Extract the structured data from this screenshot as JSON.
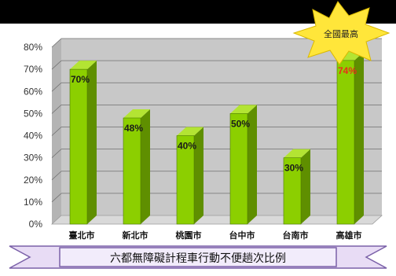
{
  "badge": {
    "text": "全國最高"
  },
  "banner": {
    "title": "六都無障礙計程車行動不便趟次比例"
  },
  "colors": {
    "bar_front": "#8ccf00",
    "bar_side": "#5f8f00",
    "bar_top": "#b3e433",
    "label_default": "#1a1a1a",
    "label_highlight": "#e8301a",
    "wall": "#c8c8c8",
    "banner_fill": "#e8dcf5",
    "star_fill": "#ffe63a"
  },
  "chart_data": {
    "type": "bar",
    "categories": [
      "臺北市",
      "新北市",
      "桃園市",
      "台中市",
      "台南市",
      "高雄市"
    ],
    "values": [
      70,
      48,
      40,
      50,
      30,
      74
    ],
    "value_labels": [
      "70%",
      "48%",
      "40%",
      "50%",
      "30%",
      "74%"
    ],
    "highlight_index": 5,
    "ylim": [
      0,
      80
    ],
    "yticks": [
      "0%",
      "10%",
      "20%",
      "30%",
      "40%",
      "50%",
      "60%",
      "70%",
      "80%"
    ],
    "grid": true,
    "style": "3d"
  }
}
